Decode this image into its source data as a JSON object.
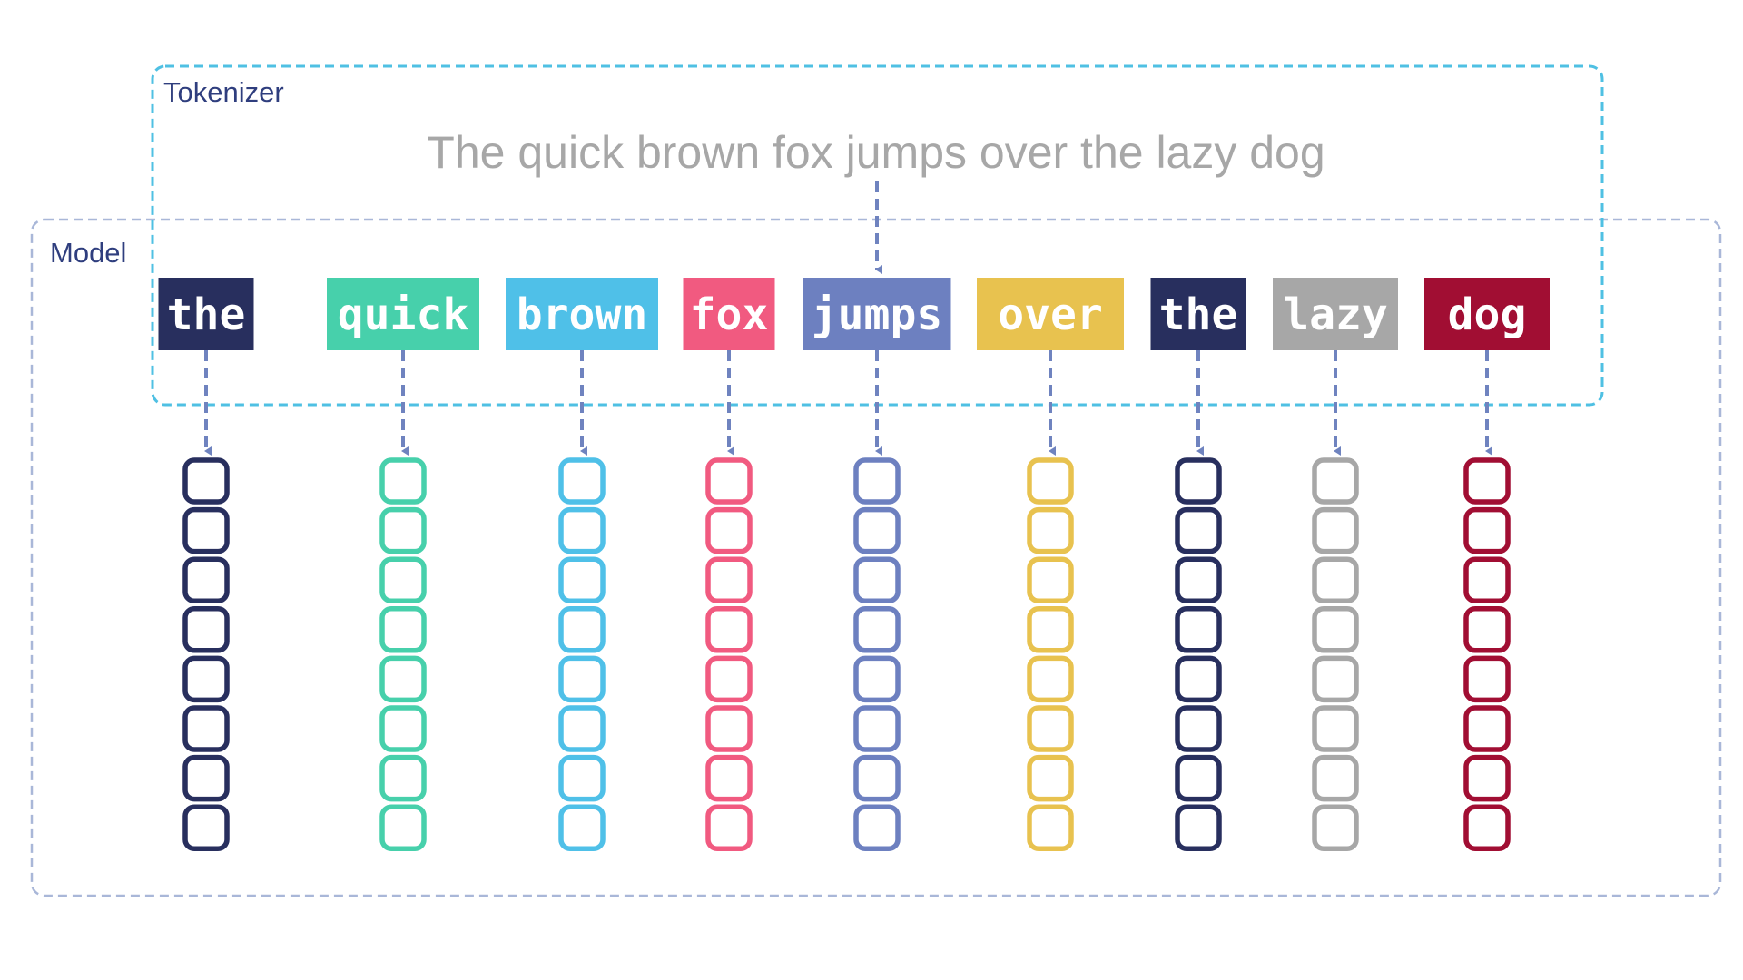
{
  "tokenizer": {
    "label": "Tokenizer",
    "border_color": "#4fc0e3",
    "label_color": "#2f3e7e"
  },
  "model": {
    "label": "Model",
    "border_color": "#a9b7d8",
    "label_color": "#2f3e7e"
  },
  "sentence": {
    "text": "The quick brown fox jumps over the lazy dog",
    "color": "#a7a7a7"
  },
  "arrow_color": "#6f83bf",
  "embedding_cells_per_token": 8,
  "tokens": [
    {
      "text": "the",
      "color": "#282f5e"
    },
    {
      "text": "quick",
      "color": "#47d0ab"
    },
    {
      "text": "brown",
      "color": "#4fc0e8"
    },
    {
      "text": "fox",
      "color": "#f15a80"
    },
    {
      "text": "jumps",
      "color": "#6d80c0"
    },
    {
      "text": "over",
      "color": "#e8c24f"
    },
    {
      "text": "the",
      "color": "#282f5e"
    },
    {
      "text": "lazy",
      "color": "#a7a7a7"
    },
    {
      "text": "dog",
      "color": "#a10e33"
    }
  ]
}
